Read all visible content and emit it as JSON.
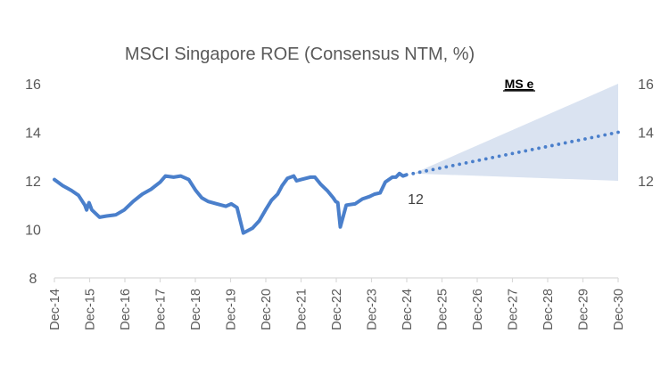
{
  "chart_data": {
    "type": "line",
    "title": "MSCI Singapore ROE (Consensus NTM, %)",
    "xlabel": "",
    "ylabel": "",
    "ylim": [
      8,
      16
    ],
    "yticks_left": [
      "8",
      "10",
      "12",
      "14",
      "16"
    ],
    "yticks_right": [
      "12",
      "14",
      "16"
    ],
    "xlim_years": [
      2014.917,
      2030.917
    ],
    "xticks": [
      "Dec-14",
      "Dec-15",
      "Dec-16",
      "Dec-17",
      "Dec-18",
      "Dec-19",
      "Dec-20",
      "Dec-21",
      "Dec-22",
      "Dec-23",
      "Dec-24",
      "Dec-25",
      "Dec-26",
      "Dec-27",
      "Dec-28",
      "Dec-29",
      "Dec-30"
    ],
    "grid": false,
    "legend": "none",
    "colors": {
      "line": "#4a7fcb",
      "forecast_band": "#dae3f1",
      "axis": "#d9d9d9",
      "text": "#595959"
    },
    "series": [
      {
        "name": "MSCI Singapore ROE (Consensus NTM)",
        "style": "solid",
        "x_years": [
          2014.917,
          2015.15,
          2015.4,
          2015.6,
          2015.78,
          2015.83,
          2015.9,
          2015.98,
          2016.2,
          2016.4,
          2016.66,
          2016.9,
          2017.15,
          2017.41,
          2017.66,
          2017.92,
          2018.07,
          2018.3,
          2018.5,
          2018.73,
          2018.93,
          2019.1,
          2019.28,
          2019.53,
          2019.78,
          2019.94,
          2020.1,
          2020.28,
          2020.54,
          2020.73,
          2020.91,
          2021.08,
          2021.25,
          2021.38,
          2021.53,
          2021.71,
          2021.79,
          2021.92,
          2022.18,
          2022.31,
          2022.48,
          2022.66,
          2022.83,
          2022.9,
          2022.96,
          2023.03,
          2023.2,
          2023.45,
          2023.66,
          2023.86,
          2024.0,
          2024.16,
          2024.31,
          2024.51,
          2024.61,
          2024.71,
          2024.81,
          2024.91
        ],
        "values": [
          12.05,
          11.8,
          11.6,
          11.4,
          11.0,
          10.8,
          11.1,
          10.8,
          10.5,
          10.55,
          10.6,
          10.8,
          11.15,
          11.45,
          11.65,
          11.95,
          12.2,
          12.15,
          12.2,
          12.05,
          11.6,
          11.3,
          11.15,
          11.05,
          10.95,
          11.05,
          10.9,
          9.85,
          10.05,
          10.35,
          10.8,
          11.2,
          11.45,
          11.8,
          12.1,
          12.2,
          12.0,
          12.05,
          12.15,
          12.15,
          11.85,
          11.6,
          11.3,
          11.15,
          11.1,
          10.1,
          11.0,
          11.05,
          11.25,
          11.35,
          11.45,
          11.5,
          11.95,
          12.15,
          12.15,
          12.3,
          12.2,
          12.25
        ]
      },
      {
        "name": "MS e (forecast)",
        "style": "dotted",
        "x_years": [
          2025.1,
          2030.917
        ],
        "values": [
          12.3,
          14.0
        ]
      }
    ],
    "forecast_band": {
      "x_years": [
        2025.1,
        2030.917
      ],
      "upper": [
        12.3,
        16.0
      ],
      "lower": [
        12.3,
        12.0
      ]
    },
    "annotations": [
      {
        "text": "12",
        "near": "end of actual series, below line"
      },
      {
        "text": "MS e",
        "position": "top-right",
        "underline": true
      }
    ]
  }
}
